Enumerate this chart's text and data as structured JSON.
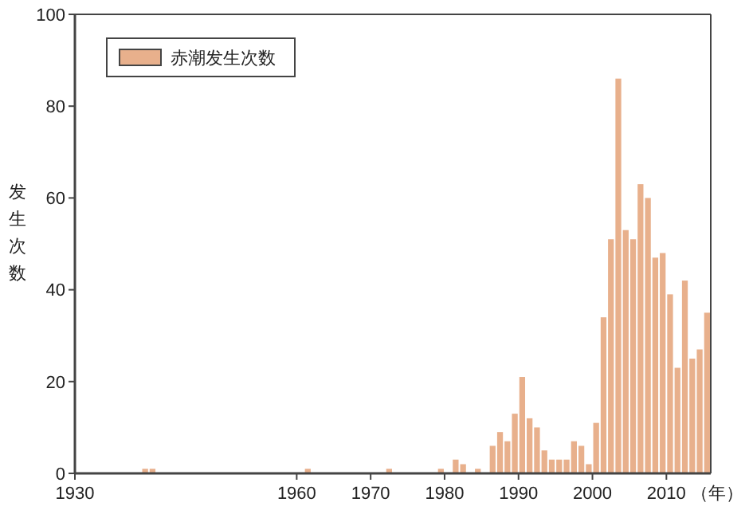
{
  "chart_data": {
    "type": "bar",
    "xlabel": "（年）",
    "ylabel": "发生次数",
    "x": [
      1939,
      1940,
      1961,
      1972,
      1979,
      1981,
      1982,
      1984,
      1986,
      1987,
      1988,
      1989,
      1990,
      1991,
      1992,
      1993,
      1994,
      1995,
      1996,
      1997,
      1998,
      1999,
      2000,
      2001,
      2002,
      2003,
      2004,
      2005,
      2006,
      2007,
      2008,
      2009,
      2010,
      2011,
      2012,
      2013,
      2014,
      2015
    ],
    "series": [
      {
        "name": "赤潮发生次数",
        "color": "#e8b08c",
        "values": [
          1,
          1,
          1,
          1,
          1,
          3,
          2,
          1,
          6,
          9,
          7,
          13,
          21,
          12,
          10,
          5,
          3,
          3,
          3,
          7,
          6,
          2,
          11,
          34,
          51,
          86,
          53,
          51,
          63,
          60,
          47,
          48,
          39,
          23,
          42,
          25,
          27,
          35
        ]
      }
    ],
    "xlim": [
      1930,
      2016
    ],
    "xticks": [
      1930,
      1960,
      1970,
      1980,
      1990,
      2000,
      2010
    ],
    "ylim": [
      0,
      100
    ],
    "yticks": [
      0,
      20,
      40,
      60,
      80,
      100
    ],
    "legend": "top left",
    "grid": false
  }
}
